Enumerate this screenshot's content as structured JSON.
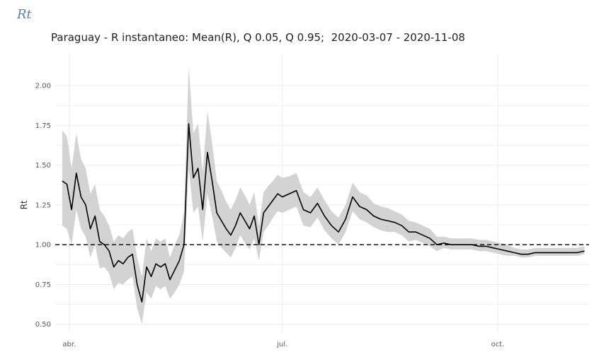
{
  "header": {
    "label": "Rt"
  },
  "chart_data": {
    "type": "line",
    "title": "Paraguay - R instantaneo: Mean(R), Q 0.05, Q 0.95;  2020-03-07 - 2020-11-08",
    "xlabel": "",
    "ylabel": "Rt",
    "ylim": [
      0.45,
      2.2
    ],
    "yticks": [
      0.5,
      0.75,
      1.0,
      1.25,
      1.5,
      1.75,
      2.0
    ],
    "ytick_labels": [
      "0.50",
      "0.75",
      "1.00",
      "1.25",
      "1.50",
      "1.75",
      "2.00"
    ],
    "xlim": [
      "2020-03-26",
      "2020-11-09"
    ],
    "xticks": [
      "2020-04-01",
      "2020-07-01",
      "2020-10-01"
    ],
    "xtick_labels": [
      "abr.",
      "jul.",
      "oct."
    ],
    "reference_line": {
      "y": 1.0,
      "style": "dashed"
    },
    "grid": true,
    "colors": {
      "line": "#000000",
      "band": "#d3d3d3",
      "reference": "#000000",
      "grid": "#ebebeb"
    },
    "series": [
      {
        "x": [
          "2020-03-29",
          "2020-03-31",
          "2020-04-02",
          "2020-04-04",
          "2020-04-06",
          "2020-04-08",
          "2020-04-10",
          "2020-04-12",
          "2020-04-14",
          "2020-04-16",
          "2020-04-18",
          "2020-04-20",
          "2020-04-22",
          "2020-04-24",
          "2020-04-26",
          "2020-04-28",
          "2020-04-30",
          "2020-05-02",
          "2020-05-04",
          "2020-05-06",
          "2020-05-08",
          "2020-05-10",
          "2020-05-12",
          "2020-05-14",
          "2020-05-16",
          "2020-05-18",
          "2020-05-20",
          "2020-05-22",
          "2020-05-24",
          "2020-05-26",
          "2020-05-28",
          "2020-05-30",
          "2020-06-01",
          "2020-06-03",
          "2020-06-05",
          "2020-06-07",
          "2020-06-09",
          "2020-06-11",
          "2020-06-13",
          "2020-06-15",
          "2020-06-17",
          "2020-06-19",
          "2020-06-21",
          "2020-06-23",
          "2020-06-25",
          "2020-06-27",
          "2020-06-29",
          "2020-07-01",
          "2020-07-04",
          "2020-07-07",
          "2020-07-10",
          "2020-07-13",
          "2020-07-16",
          "2020-07-19",
          "2020-07-22",
          "2020-07-25",
          "2020-07-28",
          "2020-07-31",
          "2020-08-03",
          "2020-08-06",
          "2020-08-09",
          "2020-08-12",
          "2020-08-15",
          "2020-08-18",
          "2020-08-21",
          "2020-08-24",
          "2020-08-27",
          "2020-08-30",
          "2020-09-02",
          "2020-09-05",
          "2020-09-08",
          "2020-09-11",
          "2020-09-14",
          "2020-09-17",
          "2020-09-20",
          "2020-09-23",
          "2020-09-26",
          "2020-09-29",
          "2020-10-02",
          "2020-10-05",
          "2020-10-08",
          "2020-10-11",
          "2020-10-14",
          "2020-10-17",
          "2020-10-20",
          "2020-10-23",
          "2020-10-26",
          "2020-10-29",
          "2020-11-01",
          "2020-11-04",
          "2020-11-07"
        ],
        "mean": [
          1.4,
          1.38,
          1.22,
          1.45,
          1.3,
          1.25,
          1.1,
          1.18,
          1.02,
          1.0,
          0.96,
          0.86,
          0.9,
          0.88,
          0.92,
          0.94,
          0.75,
          0.64,
          0.86,
          0.8,
          0.88,
          0.86,
          0.88,
          0.78,
          0.84,
          0.9,
          1.0,
          1.76,
          1.42,
          1.48,
          1.22,
          1.58,
          1.4,
          1.2,
          1.15,
          1.1,
          1.06,
          1.12,
          1.2,
          1.15,
          1.1,
          1.18,
          1.0,
          1.2,
          1.24,
          1.28,
          1.32,
          1.3,
          1.32,
          1.34,
          1.22,
          1.2,
          1.26,
          1.18,
          1.12,
          1.08,
          1.16,
          1.3,
          1.24,
          1.22,
          1.18,
          1.16,
          1.15,
          1.14,
          1.12,
          1.08,
          1.08,
          1.06,
          1.04,
          1.0,
          1.01,
          1.0,
          1.0,
          1.0,
          1.0,
          0.99,
          0.99,
          0.98,
          0.97,
          0.96,
          0.95,
          0.94,
          0.94,
          0.95,
          0.95,
          0.95,
          0.95,
          0.95,
          0.95,
          0.95,
          0.96
        ],
        "q05": [
          1.12,
          1.1,
          1.0,
          1.22,
          1.1,
          1.05,
          0.92,
          1.0,
          0.85,
          0.86,
          0.82,
          0.72,
          0.76,
          0.75,
          0.78,
          0.8,
          0.6,
          0.5,
          0.7,
          0.66,
          0.74,
          0.72,
          0.74,
          0.66,
          0.7,
          0.75,
          0.83,
          1.48,
          1.2,
          1.24,
          1.02,
          1.32,
          1.18,
          1.02,
          0.98,
          0.95,
          0.92,
          0.98,
          1.06,
          1.01,
          0.97,
          1.04,
          0.9,
          1.08,
          1.12,
          1.17,
          1.21,
          1.2,
          1.22,
          1.24,
          1.12,
          1.11,
          1.17,
          1.09,
          1.04,
          1.0,
          1.08,
          1.21,
          1.16,
          1.14,
          1.11,
          1.09,
          1.08,
          1.08,
          1.06,
          1.02,
          1.03,
          1.01,
          0.99,
          0.96,
          0.98,
          0.97,
          0.97,
          0.97,
          0.97,
          0.96,
          0.96,
          0.95,
          0.94,
          0.93,
          0.93,
          0.92,
          0.92,
          0.93,
          0.93,
          0.93,
          0.93,
          0.93,
          0.93,
          0.93,
          0.94
        ],
        "q95": [
          1.72,
          1.68,
          1.48,
          1.7,
          1.54,
          1.48,
          1.32,
          1.38,
          1.22,
          1.18,
          1.12,
          1.02,
          1.06,
          1.04,
          1.08,
          1.1,
          0.92,
          0.8,
          1.04,
          0.96,
          1.04,
          1.02,
          1.04,
          0.92,
          1.0,
          1.06,
          1.2,
          2.12,
          1.7,
          1.76,
          1.46,
          1.84,
          1.64,
          1.4,
          1.34,
          1.27,
          1.22,
          1.28,
          1.36,
          1.31,
          1.25,
          1.33,
          1.12,
          1.33,
          1.37,
          1.4,
          1.44,
          1.42,
          1.43,
          1.45,
          1.33,
          1.3,
          1.36,
          1.28,
          1.21,
          1.17,
          1.25,
          1.39,
          1.33,
          1.31,
          1.26,
          1.24,
          1.23,
          1.21,
          1.19,
          1.15,
          1.14,
          1.12,
          1.1,
          1.05,
          1.05,
          1.04,
          1.04,
          1.04,
          1.04,
          1.03,
          1.03,
          1.02,
          1.01,
          1.0,
          0.98,
          0.97,
          0.97,
          0.98,
          0.98,
          0.98,
          0.98,
          0.98,
          0.98,
          0.98,
          0.99
        ]
      }
    ]
  }
}
